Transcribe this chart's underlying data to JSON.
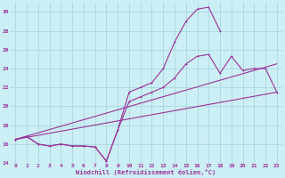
{
  "background_color": "#cceef5",
  "grid_color": "#aad8e0",
  "line_color": "#993399",
  "xlim": [
    -0.5,
    23.5
  ],
  "ylim": [
    14,
    31
  ],
  "xticks": [
    0,
    1,
    2,
    3,
    4,
    5,
    6,
    7,
    8,
    9,
    10,
    11,
    12,
    13,
    14,
    15,
    16,
    17,
    18,
    19,
    20,
    21,
    22,
    23
  ],
  "yticks": [
    14,
    16,
    18,
    20,
    22,
    24,
    26,
    28,
    30
  ],
  "xlabel": "Windchill (Refroidissement éolien,°C)",
  "series": [
    {
      "x": [
        0,
        1,
        2,
        3,
        4,
        5,
        6,
        7,
        8,
        9,
        10,
        11,
        12,
        13,
        14,
        15,
        16,
        17,
        18,
        19,
        20,
        21,
        22,
        23
      ],
      "y": [
        16.5,
        16.8,
        16.0,
        15.8,
        16.0,
        15.8,
        15.8,
        15.7,
        14.2,
        17.5,
        21.5,
        22.0,
        22.5,
        24.0,
        26.8,
        29.0,
        30.3,
        30.5,
        28.0,
        null,
        null,
        null,
        null,
        null
      ]
    },
    {
      "x": [
        0,
        1,
        2,
        3,
        4,
        5,
        6,
        7,
        8,
        9,
        10,
        11,
        12,
        13,
        14,
        15,
        16,
        17,
        18,
        19,
        20,
        21,
        22,
        23
      ],
      "y": [
        16.5,
        16.8,
        16.0,
        15.8,
        16.0,
        15.8,
        15.8,
        15.7,
        14.2,
        17.5,
        20.5,
        21.0,
        21.5,
        22.0,
        23.0,
        24.5,
        25.3,
        25.5,
        23.5,
        25.3,
        23.8,
        24.0,
        24.0,
        21.5
      ]
    },
    {
      "x": [
        0,
        23
      ],
      "y": [
        16.5,
        24.5
      ]
    },
    {
      "x": [
        0,
        23
      ],
      "y": [
        16.5,
        21.5
      ]
    }
  ]
}
